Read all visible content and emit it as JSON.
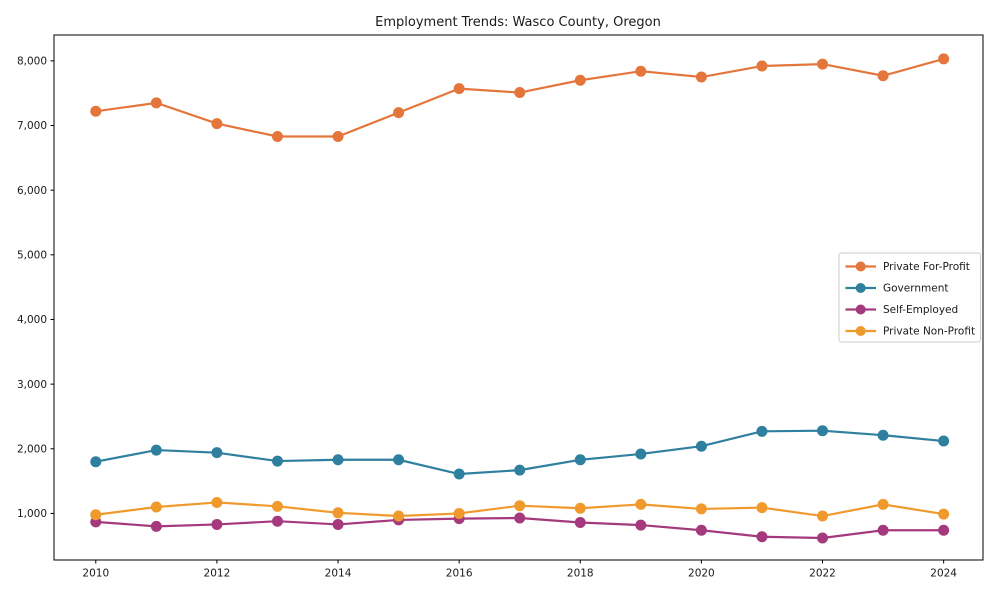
{
  "chart_data": {
    "type": "line",
    "title": "Employment Trends: Wasco County, Oregon",
    "x": [
      2010,
      2011,
      2012,
      2013,
      2014,
      2015,
      2016,
      2017,
      2018,
      2019,
      2020,
      2021,
      2022,
      2023,
      2024
    ],
    "series": [
      {
        "name": "Private For-Profit",
        "color": "#e4763c",
        "values": [
          7220,
          7350,
          7030,
          6830,
          6830,
          7200,
          7570,
          7510,
          7700,
          7840,
          7750,
          7920,
          7950,
          7770,
          8030
        ]
      },
      {
        "name": "Government",
        "color": "#2f7f9f",
        "values": [
          1800,
          1980,
          1940,
          1810,
          1830,
          1830,
          1610,
          1670,
          1830,
          1920,
          2040,
          2270,
          2280,
          2210,
          2120
        ]
      },
      {
        "name": "Self-Employed",
        "color": "#a43a7d",
        "values": [
          870,
          800,
          830,
          880,
          830,
          900,
          920,
          930,
          860,
          820,
          740,
          640,
          620,
          740,
          740
        ]
      },
      {
        "name": "Private Non-Profit",
        "color": "#f09a2d",
        "values": [
          980,
          1100,
          1170,
          1110,
          1010,
          960,
          1000,
          1120,
          1080,
          1140,
          1070,
          1090,
          960,
          1140,
          990
        ]
      }
    ],
    "xlabel": "",
    "ylabel": "",
    "xlim": [
      2009.31,
      2024.65
    ],
    "ylim": [
      280,
      8400
    ],
    "xticks": [
      2010,
      2012,
      2014,
      2016,
      2018,
      2020,
      2022,
      2024
    ],
    "yticks": [
      1000,
      2000,
      3000,
      4000,
      5000,
      6000,
      7000,
      8000
    ],
    "ytick_labels": [
      "1,000",
      "2,000",
      "3,000",
      "4,000",
      "5,000",
      "6,000",
      "7,000",
      "8,000"
    ],
    "grid": false,
    "legend_position": "center right",
    "marker": "circle",
    "frame_color": "#000000",
    "legend_border_color": "#cccccc"
  }
}
